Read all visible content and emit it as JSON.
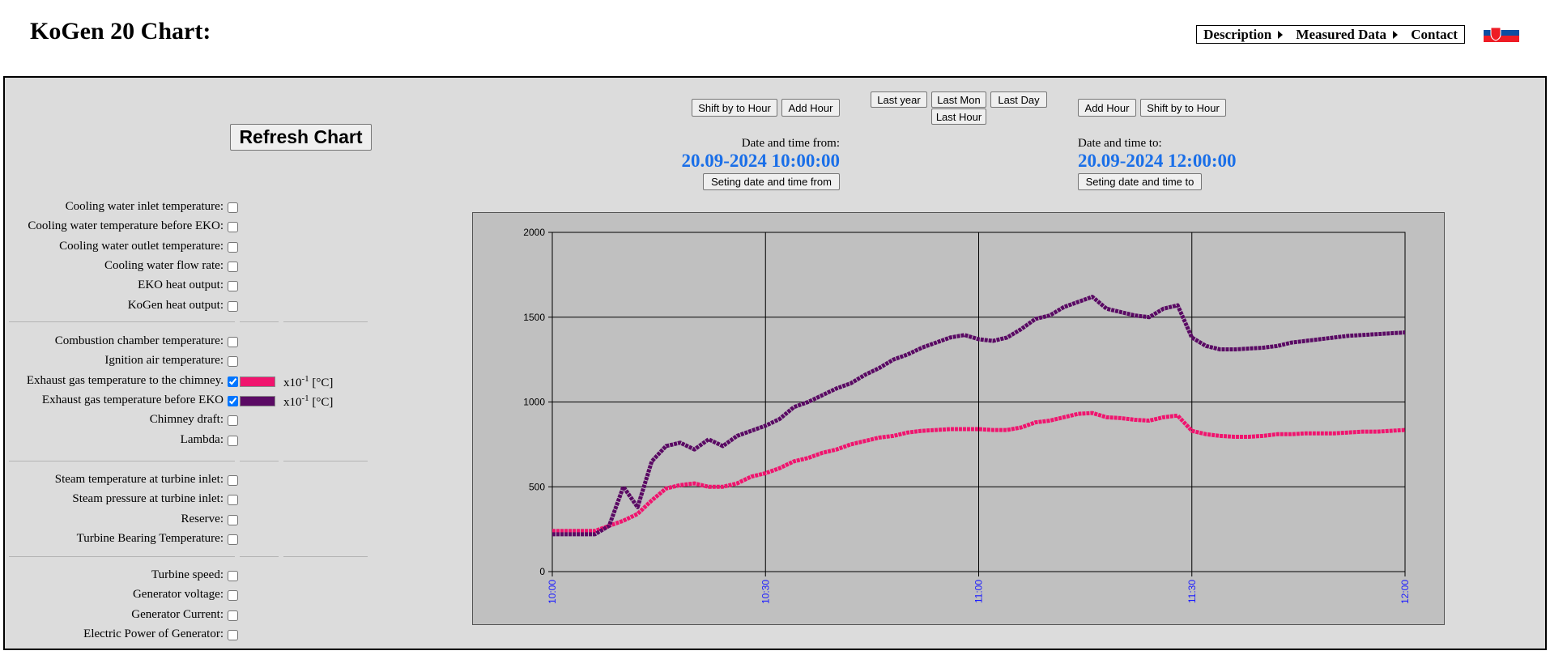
{
  "header": {
    "title": "KoGen 20 Chart:",
    "nav": [
      "Description",
      "Measured Data",
      "Contact"
    ]
  },
  "controls": {
    "refresh": "Refresh Chart",
    "from": {
      "shift": "Shift by to Hour",
      "add": "Add Hour",
      "label": "Date and time from:",
      "value": "20.09-2024 10:00:00",
      "button": "Seting date and time from"
    },
    "last": [
      "Last year",
      "Last Mon",
      "Last Day",
      "Last Hour"
    ],
    "to": {
      "add": "Add Hour",
      "shift": "Shift by to Hour",
      "label": "Date and time to:",
      "value": "20.09-2024 12:00:00",
      "button": "Seting date and time to"
    }
  },
  "channels": [
    [
      {
        "label": "Cooling water inlet temperature:",
        "checked": false
      },
      {
        "label": "Cooling water temperature before EKO:",
        "checked": false
      },
      {
        "label": "Cooling water outlet temperature:",
        "checked": false
      },
      {
        "label": "Cooling water flow rate:",
        "checked": false
      },
      {
        "label": "EKO heat output:",
        "checked": false
      },
      {
        "label": "KoGen heat output:",
        "checked": false
      }
    ],
    [
      {
        "label": "Combustion chamber temperature:",
        "checked": false
      },
      {
        "label": "Ignition air temperature:",
        "checked": false
      },
      {
        "label": "Exhaust gas temperature to the chimney.",
        "checked": true,
        "color": "#f0146e",
        "unit": {
          "base": "x10",
          "exponent": "-1",
          "suffix": "[°C]"
        }
      },
      {
        "label": "Exhaust gas temperature before EKO",
        "checked": true,
        "color": "#5a0a64",
        "unit": {
          "base": "x10",
          "exponent": "-1",
          "suffix": "[°C]"
        }
      },
      {
        "label": "Chimney draft:",
        "checked": false
      },
      {
        "label": "Lambda:",
        "checked": false
      }
    ],
    [
      {
        "label": "Steam temperature at turbine inlet:",
        "checked": false
      },
      {
        "label": "Steam pressure at turbine inlet:",
        "checked": false
      },
      {
        "label": "Reserve:",
        "checked": false
      },
      {
        "label": "Turbine Bearing Temperature:",
        "checked": false
      }
    ],
    [
      {
        "label": "Turbine speed:",
        "checked": false
      },
      {
        "label": "Generator voltage:",
        "checked": false
      },
      {
        "label": "Generator Current:",
        "checked": false
      },
      {
        "label": "Electric Power of Generator:",
        "checked": false
      }
    ]
  ],
  "chart_data": {
    "type": "line",
    "x": [
      "10:00",
      "10:02",
      "10:04",
      "10:06",
      "10:08",
      "10:10",
      "10:12",
      "10:14",
      "10:16",
      "10:18",
      "10:20",
      "10:22",
      "10:24",
      "10:26",
      "10:28",
      "10:30",
      "10:32",
      "10:34",
      "10:36",
      "10:38",
      "10:40",
      "10:42",
      "10:44",
      "10:46",
      "10:48",
      "10:50",
      "10:52",
      "10:54",
      "10:56",
      "10:58",
      "11:00",
      "11:02",
      "11:04",
      "11:06",
      "11:08",
      "11:10",
      "11:12",
      "11:14",
      "11:16",
      "11:18",
      "11:20",
      "11:22",
      "11:24",
      "11:26",
      "11:28",
      "11:30",
      "11:32",
      "11:34",
      "11:36",
      "11:38",
      "11:40",
      "11:42",
      "11:44",
      "11:46",
      "11:48",
      "11:50",
      "11:52",
      "11:54",
      "11:56",
      "11:58",
      "12:00"
    ],
    "series": [
      {
        "color": "#f0146e",
        "values": [
          240,
          240,
          240,
          240,
          270,
          300,
          340,
          420,
          490,
          510,
          520,
          500,
          500,
          520,
          560,
          580,
          610,
          650,
          670,
          700,
          720,
          750,
          770,
          790,
          800,
          820,
          830,
          835,
          840,
          840,
          840,
          835,
          835,
          850,
          880,
          890,
          910,
          930,
          935,
          910,
          905,
          895,
          890,
          910,
          920,
          830,
          810,
          800,
          795,
          795,
          800,
          810,
          810,
          815,
          815,
          815,
          820,
          825,
          825,
          830,
          835
        ]
      },
      {
        "color": "#5a0a64",
        "values": [
          220,
          220,
          220,
          220,
          270,
          500,
          380,
          650,
          740,
          760,
          720,
          780,
          740,
          800,
          830,
          860,
          900,
          970,
          1000,
          1040,
          1080,
          1110,
          1160,
          1200,
          1250,
          1280,
          1320,
          1350,
          1380,
          1395,
          1370,
          1360,
          1380,
          1430,
          1490,
          1510,
          1560,
          1590,
          1620,
          1550,
          1530,
          1510,
          1500,
          1550,
          1570,
          1380,
          1330,
          1310,
          1310,
          1315,
          1320,
          1330,
          1350,
          1360,
          1370,
          1380,
          1390,
          1395,
          1400,
          1405,
          1410
        ]
      }
    ],
    "xlim": [
      "10:00",
      "12:00"
    ],
    "xticks": [
      "10:00",
      "10:30",
      "11:00",
      "11:30",
      "12:00"
    ],
    "ylim": [
      0,
      2000
    ],
    "yticks": [
      0,
      500,
      1000,
      1500,
      2000
    ],
    "grid": true
  }
}
